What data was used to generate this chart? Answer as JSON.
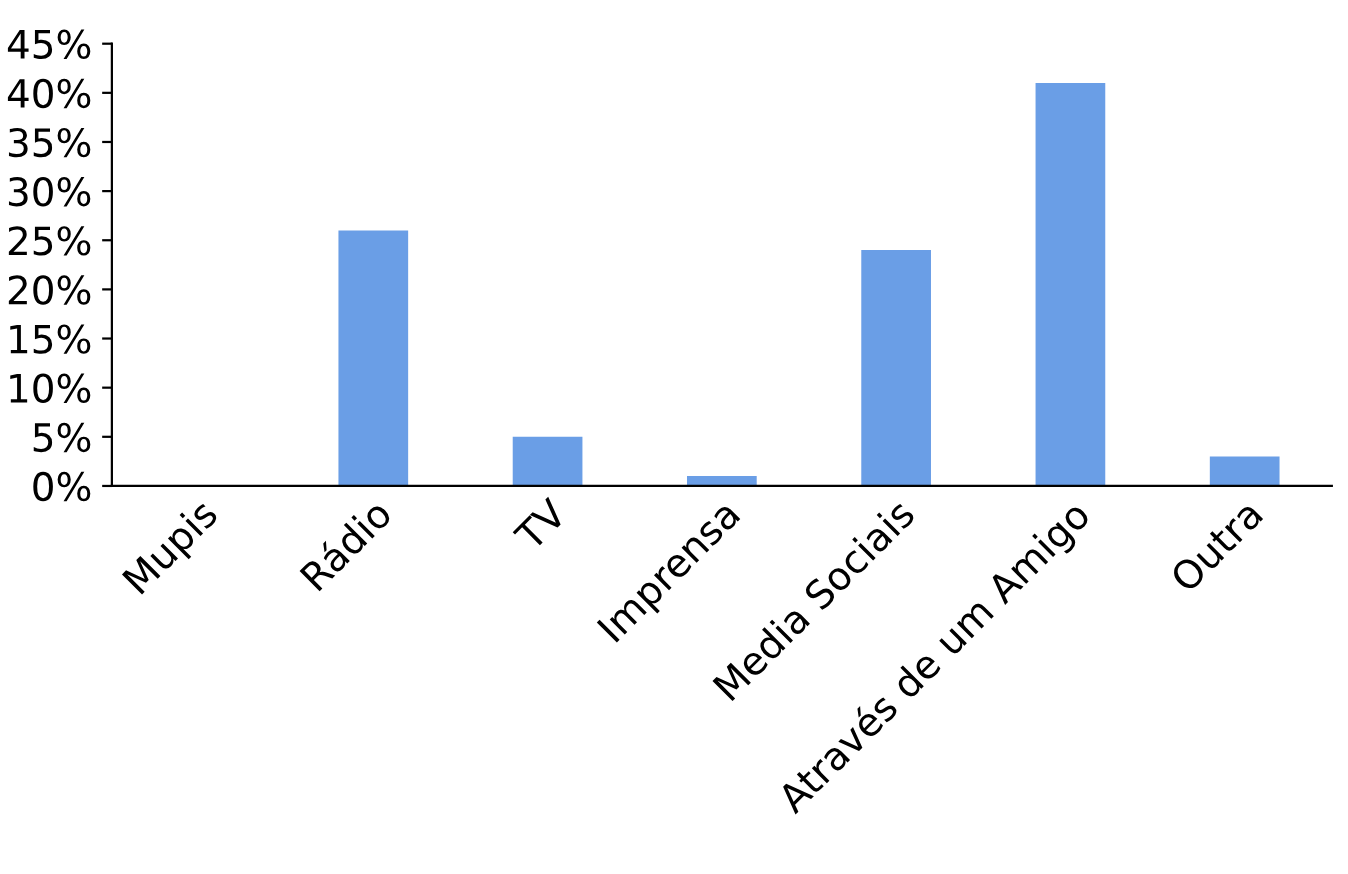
{
  "chart_data": {
    "type": "bar",
    "categories": [
      "Mupis",
      "Rádio",
      "TV",
      "Imprensa",
      "Media Sociais",
      "Através de um Amigo",
      "Outra"
    ],
    "values": [
      0,
      26,
      5,
      1,
      24,
      41,
      3
    ],
    "color": "#6a9ee6",
    "ylim": [
      0,
      45
    ],
    "yticks": [
      {
        "value": 0,
        "label": "0%"
      },
      {
        "value": 5,
        "label": "5%"
      },
      {
        "value": 10,
        "label": "10%"
      },
      {
        "value": 15,
        "label": "15%"
      },
      {
        "value": 20,
        "label": "20%"
      },
      {
        "value": 25,
        "label": "25%"
      },
      {
        "value": 30,
        "label": "30%"
      },
      {
        "value": 35,
        "label": "35%"
      },
      {
        "value": 40,
        "label": "40%"
      },
      {
        "value": 45,
        "label": "45%"
      }
    ],
    "grid": false,
    "legend": false
  }
}
